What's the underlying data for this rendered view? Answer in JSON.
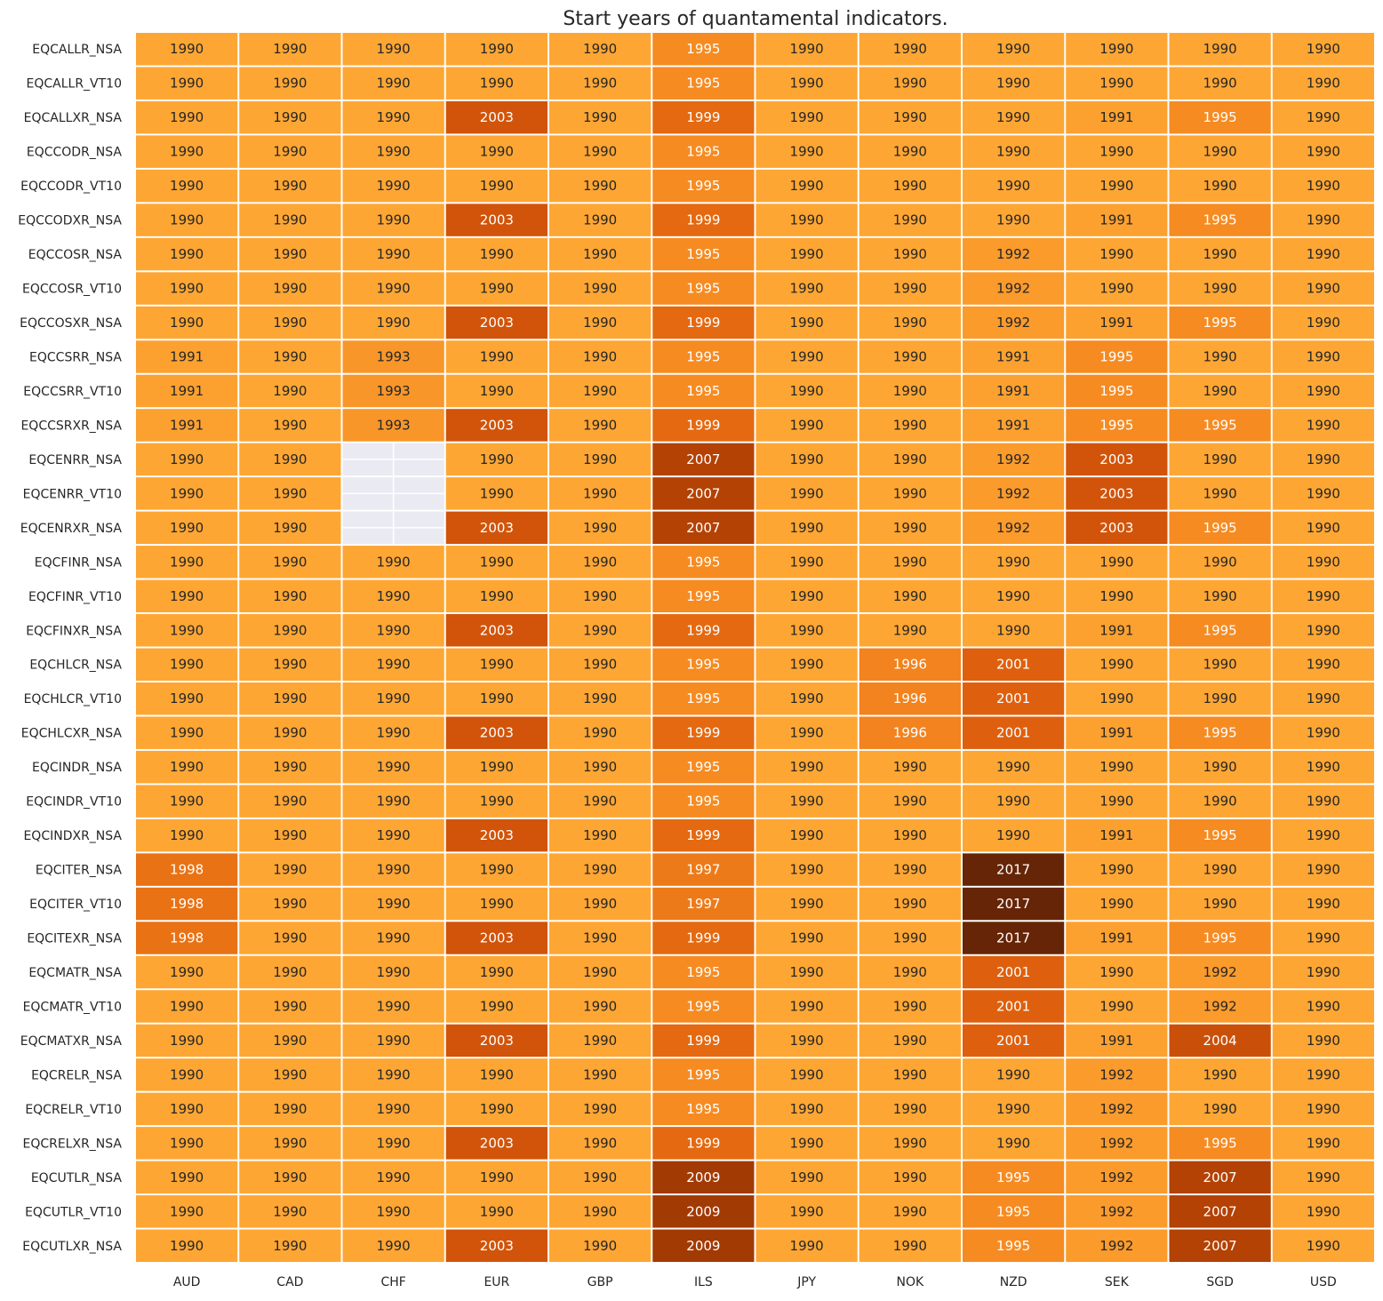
{
  "chart_data": {
    "type": "heatmap",
    "title": "Start years of quantamental indicators.",
    "xlabel": "",
    "ylabel": "",
    "colormap": "YlOrBr",
    "missing_color": "#eaeaf2",
    "categories_x": [
      "AUD",
      "CAD",
      "CHF",
      "EUR",
      "GBP",
      "ILS",
      "JPY",
      "NOK",
      "NZD",
      "SEK",
      "SGD",
      "USD"
    ],
    "categories_y": [
      "EQCALLR_NSA",
      "EQCALLR_VT10",
      "EQCALLXR_NSA",
      "EQCCODR_NSA",
      "EQCCODR_VT10",
      "EQCCODXR_NSA",
      "EQCCOSR_NSA",
      "EQCCOSR_VT10",
      "EQCCOSXR_NSA",
      "EQCCSRR_NSA",
      "EQCCSRR_VT10",
      "EQCCSRXR_NSA",
      "EQCENRR_NSA",
      "EQCENRR_VT10",
      "EQCENRXR_NSA",
      "EQCFINR_NSA",
      "EQCFINR_VT10",
      "EQCFINXR_NSA",
      "EQCHLCR_NSA",
      "EQCHLCR_VT10",
      "EQCHLCXR_NSA",
      "EQCINDR_NSA",
      "EQCINDR_VT10",
      "EQCINDXR_NSA",
      "EQCITER_NSA",
      "EQCITER_VT10",
      "EQCITEXR_NSA",
      "EQCMATR_NSA",
      "EQCMATR_VT10",
      "EQCMATXR_NSA",
      "EQCRELR_NSA",
      "EQCRELR_VT10",
      "EQCRELXR_NSA",
      "EQCUTLR_NSA",
      "EQCUTLR_VT10",
      "EQCUTLXR_NSA"
    ],
    "values": [
      [
        1990,
        1990,
        1990,
        1990,
        1990,
        1995,
        1990,
        1990,
        1990,
        1990,
        1990,
        1990
      ],
      [
        1990,
        1990,
        1990,
        1990,
        1990,
        1995,
        1990,
        1990,
        1990,
        1990,
        1990,
        1990
      ],
      [
        1990,
        1990,
        1990,
        2003,
        1990,
        1999,
        1990,
        1990,
        1990,
        1991,
        1995,
        1990
      ],
      [
        1990,
        1990,
        1990,
        1990,
        1990,
        1995,
        1990,
        1990,
        1990,
        1990,
        1990,
        1990
      ],
      [
        1990,
        1990,
        1990,
        1990,
        1990,
        1995,
        1990,
        1990,
        1990,
        1990,
        1990,
        1990
      ],
      [
        1990,
        1990,
        1990,
        2003,
        1990,
        1999,
        1990,
        1990,
        1990,
        1991,
        1995,
        1990
      ],
      [
        1990,
        1990,
        1990,
        1990,
        1990,
        1995,
        1990,
        1990,
        1992,
        1990,
        1990,
        1990
      ],
      [
        1990,
        1990,
        1990,
        1990,
        1990,
        1995,
        1990,
        1990,
        1992,
        1990,
        1990,
        1990
      ],
      [
        1990,
        1990,
        1990,
        2003,
        1990,
        1999,
        1990,
        1990,
        1992,
        1991,
        1995,
        1990
      ],
      [
        1991,
        1990,
        1993,
        1990,
        1990,
        1995,
        1990,
        1990,
        1991,
        1995,
        1990,
        1990
      ],
      [
        1991,
        1990,
        1993,
        1990,
        1990,
        1995,
        1990,
        1990,
        1991,
        1995,
        1990,
        1990
      ],
      [
        1991,
        1990,
        1993,
        2003,
        1990,
        1999,
        1990,
        1990,
        1991,
        1995,
        1995,
        1990
      ],
      [
        1990,
        1990,
        null,
        1990,
        1990,
        2007,
        1990,
        1990,
        1992,
        2003,
        1990,
        1990
      ],
      [
        1990,
        1990,
        null,
        1990,
        1990,
        2007,
        1990,
        1990,
        1992,
        2003,
        1990,
        1990
      ],
      [
        1990,
        1990,
        null,
        2003,
        1990,
        2007,
        1990,
        1990,
        1992,
        2003,
        1995,
        1990
      ],
      [
        1990,
        1990,
        1990,
        1990,
        1990,
        1995,
        1990,
        1990,
        1990,
        1990,
        1990,
        1990
      ],
      [
        1990,
        1990,
        1990,
        1990,
        1990,
        1995,
        1990,
        1990,
        1990,
        1990,
        1990,
        1990
      ],
      [
        1990,
        1990,
        1990,
        2003,
        1990,
        1999,
        1990,
        1990,
        1990,
        1991,
        1995,
        1990
      ],
      [
        1990,
        1990,
        1990,
        1990,
        1990,
        1995,
        1990,
        1996,
        2001,
        1990,
        1990,
        1990
      ],
      [
        1990,
        1990,
        1990,
        1990,
        1990,
        1995,
        1990,
        1996,
        2001,
        1990,
        1990,
        1990
      ],
      [
        1990,
        1990,
        1990,
        2003,
        1990,
        1999,
        1990,
        1996,
        2001,
        1991,
        1995,
        1990
      ],
      [
        1990,
        1990,
        1990,
        1990,
        1990,
        1995,
        1990,
        1990,
        1990,
        1990,
        1990,
        1990
      ],
      [
        1990,
        1990,
        1990,
        1990,
        1990,
        1995,
        1990,
        1990,
        1990,
        1990,
        1990,
        1990
      ],
      [
        1990,
        1990,
        1990,
        2003,
        1990,
        1999,
        1990,
        1990,
        1990,
        1991,
        1995,
        1990
      ],
      [
        1998,
        1990,
        1990,
        1990,
        1990,
        1997,
        1990,
        1990,
        2017,
        1990,
        1990,
        1990
      ],
      [
        1998,
        1990,
        1990,
        1990,
        1990,
        1997,
        1990,
        1990,
        2017,
        1990,
        1990,
        1990
      ],
      [
        1998,
        1990,
        1990,
        2003,
        1990,
        1999,
        1990,
        1990,
        2017,
        1991,
        1995,
        1990
      ],
      [
        1990,
        1990,
        1990,
        1990,
        1990,
        1995,
        1990,
        1990,
        2001,
        1990,
        1992,
        1990
      ],
      [
        1990,
        1990,
        1990,
        1990,
        1990,
        1995,
        1990,
        1990,
        2001,
        1990,
        1992,
        1990
      ],
      [
        1990,
        1990,
        1990,
        2003,
        1990,
        1999,
        1990,
        1990,
        2001,
        1991,
        2004,
        1990
      ],
      [
        1990,
        1990,
        1990,
        1990,
        1990,
        1995,
        1990,
        1990,
        1990,
        1992,
        1990,
        1990
      ],
      [
        1990,
        1990,
        1990,
        1990,
        1990,
        1995,
        1990,
        1990,
        1990,
        1992,
        1990,
        1990
      ],
      [
        1990,
        1990,
        1990,
        2003,
        1990,
        1999,
        1990,
        1990,
        1990,
        1992,
        1995,
        1990
      ],
      [
        1990,
        1990,
        1990,
        1990,
        1990,
        2009,
        1990,
        1990,
        1995,
        1992,
        2007,
        1990
      ],
      [
        1990,
        1990,
        1990,
        1990,
        1990,
        2009,
        1990,
        1990,
        1995,
        1992,
        2007,
        1990
      ],
      [
        1990,
        1990,
        1990,
        2003,
        1990,
        2009,
        1990,
        1990,
        1995,
        1992,
        2007,
        1990
      ]
    ]
  }
}
